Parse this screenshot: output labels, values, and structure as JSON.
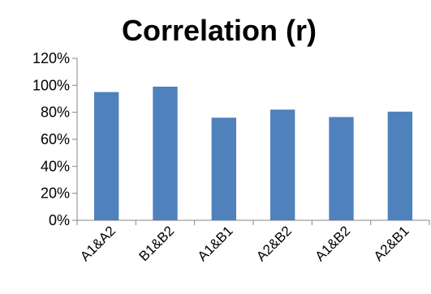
{
  "chart_data": {
    "type": "bar",
    "title": "Correlation (r)",
    "xlabel": "",
    "ylabel": "",
    "categories": [
      "A1&A2",
      "B1&B2",
      "A1&B1",
      "A2&B2",
      "A1&B2",
      "A2&B1"
    ],
    "series": [
      {
        "values": [
          95,
          99,
          76,
          82,
          76.5,
          80.5
        ]
      }
    ],
    "ylim": [
      0,
      120
    ],
    "yticks": [
      0,
      20,
      40,
      60,
      80,
      100,
      120
    ],
    "ytick_labels": [
      "0%",
      "20%",
      "40%",
      "60%",
      "80%",
      "100%",
      "120%"
    ],
    "grid": false,
    "legend": "none",
    "colors": {
      "bar": "#4F81BD",
      "axis": "#868686",
      "text": "#000000"
    }
  }
}
